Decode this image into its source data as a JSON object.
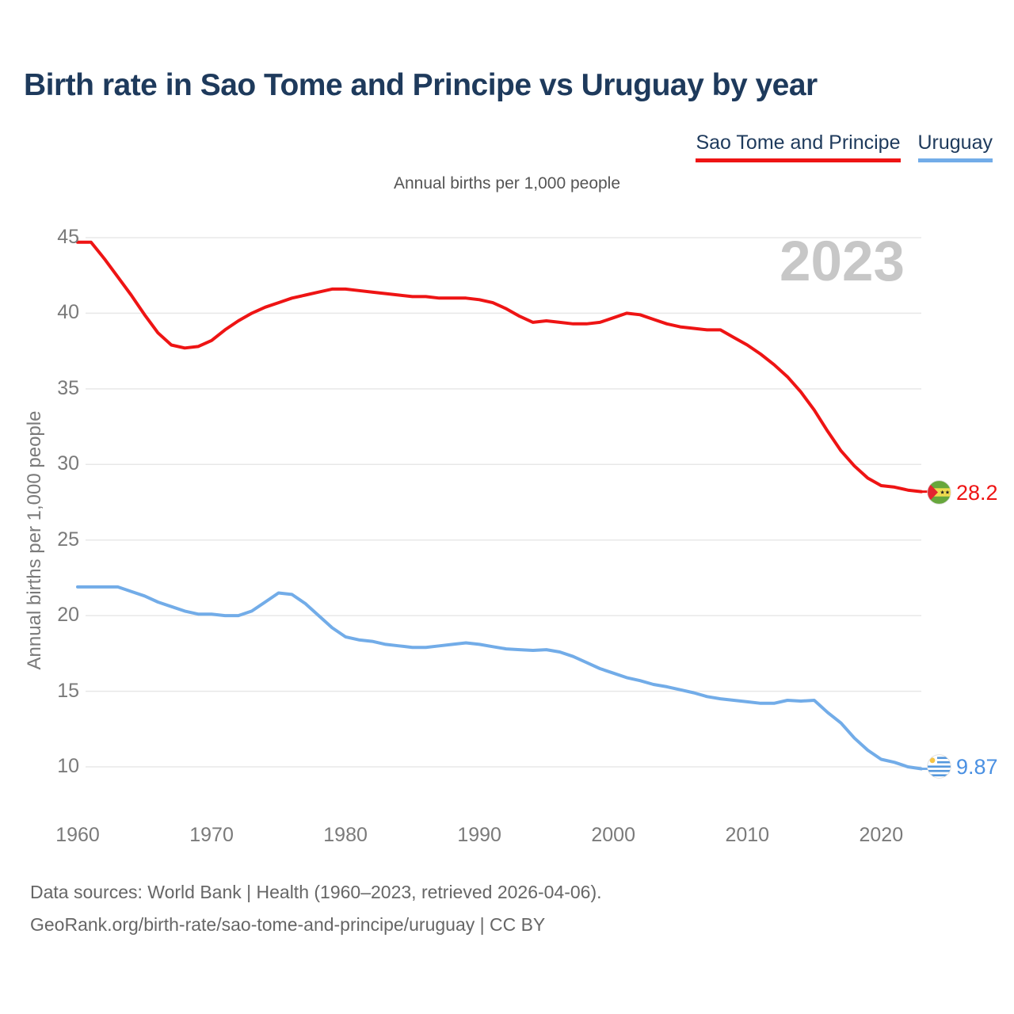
{
  "header": {
    "title": "Birth rate in Sao Tome and Principe vs Uruguay by year"
  },
  "legend": {
    "items": [
      {
        "label": "Sao Tome and Principe",
        "color": "#ee1414"
      },
      {
        "label": "Uruguay",
        "color": "#72ace8"
      }
    ]
  },
  "chart": {
    "subtitle": "Annual births per 1,000 people",
    "ylabel": "Annual births per 1,000 people",
    "watermark": "2023"
  },
  "chart_data": {
    "type": "line",
    "title": "Birth rate in Sao Tome and Principe vs Uruguay by year",
    "xlabel": "",
    "ylabel": "Annual births per 1,000 people",
    "xlim": [
      1960,
      2023
    ],
    "ylim": [
      9,
      46
    ],
    "grid": "horizontal",
    "legend_position": "top-right",
    "xticks": [
      1960,
      1970,
      1980,
      1990,
      2000,
      2010,
      2020
    ],
    "yticks": [
      10,
      15,
      20,
      25,
      30,
      35,
      40,
      45
    ],
    "x": [
      1960,
      1961,
      1962,
      1963,
      1964,
      1965,
      1966,
      1967,
      1968,
      1969,
      1970,
      1971,
      1972,
      1973,
      1974,
      1975,
      1976,
      1977,
      1978,
      1979,
      1980,
      1981,
      1982,
      1983,
      1984,
      1985,
      1986,
      1987,
      1988,
      1989,
      1990,
      1991,
      1992,
      1993,
      1994,
      1995,
      1996,
      1997,
      1998,
      1999,
      2000,
      2001,
      2002,
      2003,
      2004,
      2005,
      2006,
      2007,
      2008,
      2009,
      2010,
      2011,
      2012,
      2013,
      2014,
      2015,
      2016,
      2017,
      2018,
      2019,
      2020,
      2021,
      2022,
      2023
    ],
    "series": [
      {
        "name": "Sao Tome and Principe",
        "color": "#ee1414",
        "end_label": "28.2",
        "values": [
          44.7,
          44.7,
          43.6,
          42.4,
          41.2,
          39.9,
          38.7,
          37.9,
          37.7,
          37.8,
          38.2,
          38.9,
          39.5,
          40.0,
          40.4,
          40.7,
          41.0,
          41.2,
          41.4,
          41.6,
          41.6,
          41.5,
          41.4,
          41.3,
          41.2,
          41.1,
          41.1,
          41.0,
          41.0,
          41.0,
          40.9,
          40.7,
          40.3,
          39.8,
          39.4,
          39.5,
          39.4,
          39.3,
          39.3,
          39.4,
          39.7,
          40.0,
          39.9,
          39.6,
          39.3,
          39.1,
          39.0,
          38.9,
          38.9,
          38.4,
          37.9,
          37.3,
          36.6,
          35.8,
          34.8,
          33.6,
          32.2,
          30.9,
          29.9,
          29.1,
          28.6,
          28.5,
          28.3,
          28.2
        ]
      },
      {
        "name": "Uruguay",
        "color": "#72ace8",
        "end_label": "9.87",
        "values": [
          21.9,
          21.9,
          21.9,
          21.9,
          21.6,
          21.3,
          20.9,
          20.6,
          20.3,
          20.1,
          20.1,
          20.0,
          20.0,
          20.3,
          20.9,
          21.5,
          21.4,
          20.8,
          20.0,
          19.2,
          18.6,
          18.4,
          18.3,
          18.1,
          18.0,
          17.9,
          17.9,
          18.0,
          18.1,
          18.2,
          18.1,
          17.95,
          17.8,
          17.75,
          17.7,
          17.75,
          17.6,
          17.3,
          16.9,
          16.5,
          16.2,
          15.9,
          15.7,
          15.45,
          15.3,
          15.1,
          14.9,
          14.65,
          14.5,
          14.4,
          14.3,
          14.2,
          14.2,
          14.4,
          14.35,
          14.4,
          13.6,
          12.9,
          11.9,
          11.1,
          10.5,
          10.3,
          10.0,
          9.87
        ]
      }
    ]
  },
  "footer": {
    "line1": "Data sources: World Bank | Health (1960–2023, retrieved 2026-04-06).",
    "line2": "GeoRank.org/birth-rate/sao-tome-and-principe/uruguay | CC BY"
  }
}
